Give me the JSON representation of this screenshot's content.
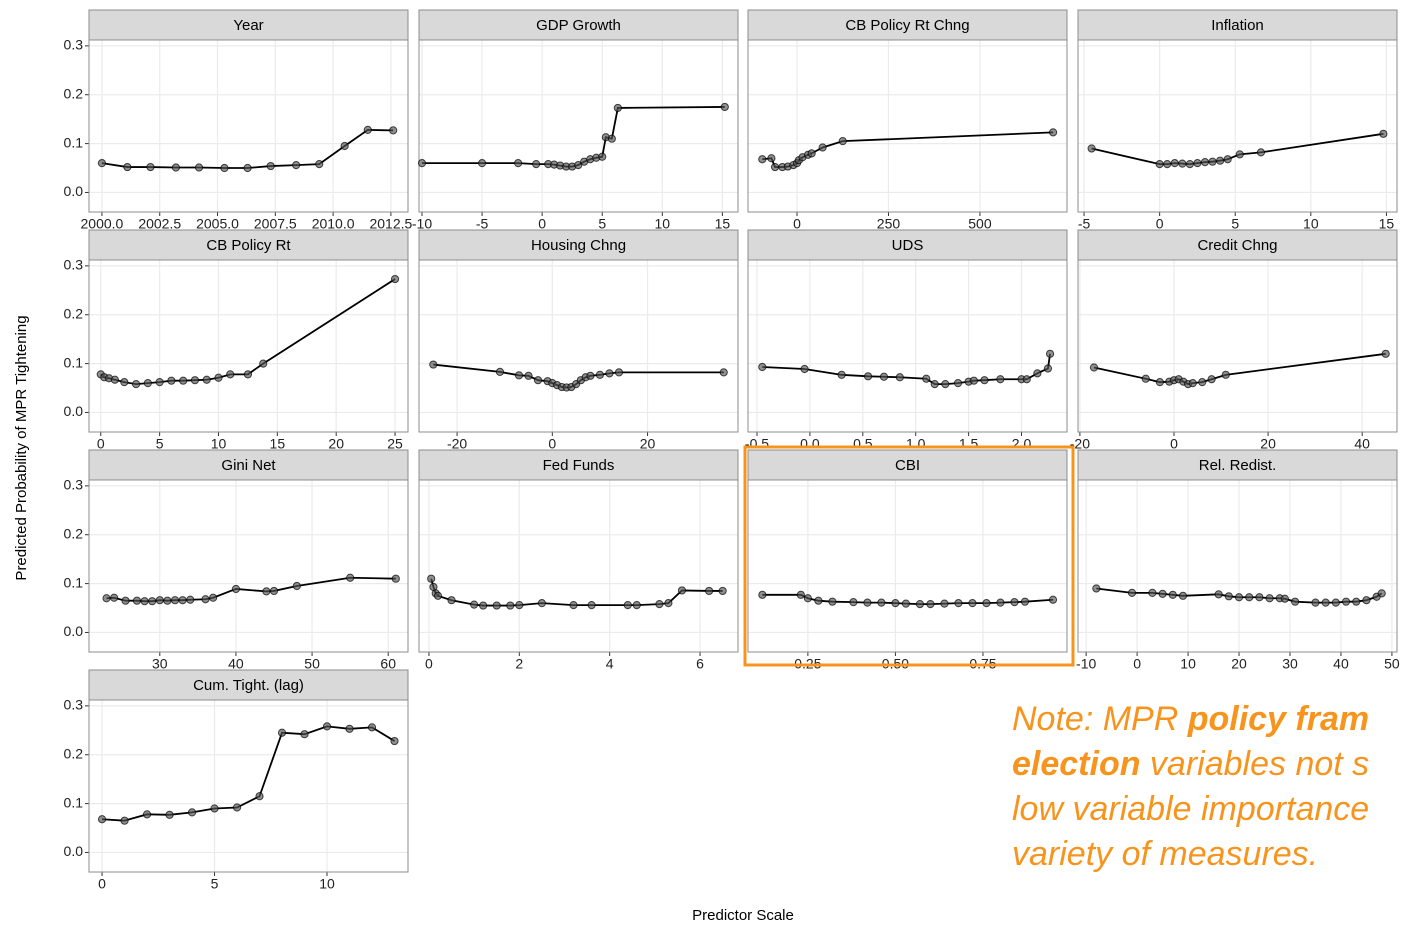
{
  "chart_data": [
    {
      "type": "line",
      "title": "Year",
      "x": [
        2000,
        2001.1,
        2002.1,
        2003.2,
        2004.2,
        2005.3,
        2006.3,
        2007.3,
        2008.4,
        2009.4,
        2010.5,
        2011.5,
        2012.6
      ],
      "values": [
        0.06,
        0.052,
        0.052,
        0.051,
        0.051,
        0.05,
        0.05,
        0.054,
        0.056,
        0.058,
        0.095,
        0.128,
        0.127
      ],
      "xlim": [
        1999.44,
        2013.24
      ],
      "xticks": [
        {
          "value": 2000,
          "label": "2000.0"
        },
        2002.5,
        {
          "value": 2005,
          "label": "2005.0"
        },
        2007.5,
        {
          "value": 2010,
          "label": "2010.0"
        },
        2012.5
      ],
      "ylim": [
        -0.04,
        0.312
      ],
      "yticks": [
        {
          "value": 0,
          "label": "0.0"
        },
        0.1,
        0.2,
        0.3
      ],
      "grid": true,
      "color": "#000000"
    },
    {
      "type": "line",
      "title": "GDP Growth",
      "x": [
        -10,
        -5,
        -2,
        -0.5,
        0.5,
        1,
        1.5,
        2,
        2.5,
        3,
        3.5,
        4,
        4.5,
        5,
        5.3,
        5.8,
        6.3,
        15.2
      ],
      "values": [
        0.06,
        0.06,
        0.06,
        0.058,
        0.058,
        0.057,
        0.055,
        0.053,
        0.053,
        0.056,
        0.063,
        0.068,
        0.071,
        0.073,
        0.113,
        0.11,
        0.173,
        0.175
      ],
      "xlim": [
        -10.25,
        16.3
      ],
      "xticks": [
        -10,
        -5,
        0,
        5,
        10,
        15
      ],
      "ylim": [
        -0.04,
        0.312
      ],
      "yticks": [
        0,
        0.1,
        0.2,
        0.3
      ],
      "grid": true,
      "color": "#000000"
    },
    {
      "type": "line",
      "title": "CB Policy Rt Chng",
      "x": [
        -95,
        -70,
        -60,
        -40,
        -25,
        -10,
        0,
        5,
        15,
        30,
        40,
        70,
        125,
        700
      ],
      "values": [
        0.068,
        0.07,
        0.052,
        0.052,
        0.053,
        0.056,
        0.06,
        0.066,
        0.072,
        0.077,
        0.08,
        0.092,
        0.105,
        0.123
      ],
      "xlim": [
        -134,
        738
      ],
      "xticks": [
        0,
        250,
        500
      ],
      "ylim": [
        -0.04,
        0.312
      ],
      "yticks": [
        0,
        0.1,
        0.2,
        0.3
      ],
      "grid": true,
      "color": "#000000"
    },
    {
      "type": "line",
      "title": "Inflation",
      "x": [
        -4.5,
        0,
        0.5,
        1,
        1.5,
        2,
        2.5,
        3,
        3.5,
        4,
        4.5,
        5.3,
        6.7,
        14.8
      ],
      "values": [
        0.09,
        0.058,
        0.058,
        0.06,
        0.059,
        0.058,
        0.06,
        0.062,
        0.063,
        0.065,
        0.068,
        0.078,
        0.082,
        0.12
      ],
      "xlim": [
        -5.4,
        15.7
      ],
      "xticks": [
        -5,
        0,
        5,
        10,
        15
      ],
      "ylim": [
        -0.04,
        0.312
      ],
      "yticks": [
        0,
        0.1,
        0.2,
        0.3
      ],
      "grid": true,
      "color": "#000000"
    },
    {
      "type": "line",
      "title": "CB Policy Rt",
      "x": [
        0,
        0.3,
        0.7,
        1.2,
        2,
        3,
        4,
        5,
        6,
        7,
        8,
        9,
        10,
        11,
        12.5,
        13.8,
        25
      ],
      "values": [
        0.078,
        0.072,
        0.07,
        0.067,
        0.062,
        0.058,
        0.06,
        0.062,
        0.065,
        0.065,
        0.066,
        0.067,
        0.071,
        0.078,
        0.078,
        0.1,
        0.273
      ],
      "xlim": [
        -1,
        26.1
      ],
      "xticks": [
        0,
        5,
        10,
        15,
        20,
        25
      ],
      "ylim": [
        -0.04,
        0.312
      ],
      "yticks": [
        {
          "value": 0,
          "label": "0.0"
        },
        0.1,
        0.2,
        0.3
      ],
      "grid": true,
      "color": "#000000"
    },
    {
      "type": "line",
      "title": "Housing Chng",
      "x": [
        -25,
        -11,
        -7,
        -5,
        -3,
        -1,
        0,
        1,
        2,
        3,
        4,
        5,
        6,
        7,
        8,
        10,
        12,
        14,
        36
      ],
      "values": [
        0.098,
        0.083,
        0.076,
        0.075,
        0.066,
        0.064,
        0.06,
        0.056,
        0.052,
        0.051,
        0.052,
        0.058,
        0.066,
        0.072,
        0.075,
        0.077,
        0.08,
        0.082,
        0.082
      ],
      "xlim": [
        -28,
        39
      ],
      "xticks": [
        -20,
        0,
        20
      ],
      "ylim": [
        -0.04,
        0.312
      ],
      "yticks": [
        0,
        0.1,
        0.2,
        0.3
      ],
      "grid": true,
      "color": "#000000"
    },
    {
      "type": "line",
      "title": "UDS",
      "x": [
        -0.45,
        -0.05,
        0.3,
        0.55,
        0.7,
        0.85,
        1.1,
        1.18,
        1.28,
        1.4,
        1.5,
        1.55,
        1.65,
        1.8,
        2.0,
        2.05,
        2.15,
        2.25,
        2.27
      ],
      "values": [
        0.093,
        0.089,
        0.077,
        0.074,
        0.073,
        0.072,
        0.069,
        0.058,
        0.058,
        0.06,
        0.063,
        0.065,
        0.066,
        0.068,
        0.068,
        0.068,
        0.08,
        0.09,
        0.12
      ],
      "xlim": [
        -0.585,
        2.43
      ],
      "xticks": [
        -0.5,
        {
          "value": 0,
          "label": "0.0"
        },
        0.5,
        {
          "value": 1,
          "label": "1.0"
        },
        1.5,
        {
          "value": 2,
          "label": "2.0"
        }
      ],
      "ylim": [
        -0.04,
        0.312
      ],
      "yticks": [
        0,
        0.1,
        0.2,
        0.3
      ],
      "grid": true,
      "color": "#000000"
    },
    {
      "type": "line",
      "title": "Credit Chng",
      "x": [
        -17,
        -6,
        -3,
        -1,
        0,
        1,
        2,
        3,
        4,
        6,
        8,
        11,
        45
      ],
      "values": [
        0.092,
        0.069,
        0.062,
        0.063,
        0.066,
        0.068,
        0.063,
        0.058,
        0.06,
        0.062,
        0.068,
        0.077,
        0.12
      ],
      "xlim": [
        -20.4,
        47.4
      ],
      "xticks": [
        -20,
        0,
        20,
        40
      ],
      "ylim": [
        -0.04,
        0.312
      ],
      "yticks": [
        0,
        0.1,
        0.2,
        0.3
      ],
      "grid": true,
      "color": "#000000"
    },
    {
      "type": "line",
      "title": "Gini Net",
      "x": [
        23,
        24,
        25.5,
        27,
        28,
        29,
        30,
        31,
        32,
        33,
        34,
        36,
        37,
        40,
        44,
        45,
        48,
        55,
        61
      ],
      "values": [
        0.07,
        0.071,
        0.065,
        0.065,
        0.064,
        0.064,
        0.066,
        0.065,
        0.066,
        0.066,
        0.067,
        0.068,
        0.071,
        0.089,
        0.084,
        0.085,
        0.095,
        0.112,
        0.11
      ],
      "xlim": [
        20.7,
        62.6
      ],
      "xticks": [
        30,
        40,
        50,
        60
      ],
      "ylim": [
        -0.04,
        0.312
      ],
      "yticks": [
        {
          "value": 0,
          "label": "0.0"
        },
        0.1,
        0.2,
        0.3
      ],
      "grid": true,
      "color": "#000000"
    },
    {
      "type": "line",
      "title": "Fed Funds",
      "x": [
        0.05,
        0.1,
        0.15,
        0.2,
        0.5,
        1,
        1.2,
        1.5,
        1.8,
        2.0,
        2.5,
        3.2,
        3.6,
        4.4,
        4.6,
        5.1,
        5.3,
        5.6,
        6.2,
        6.5
      ],
      "values": [
        0.11,
        0.093,
        0.08,
        0.075,
        0.066,
        0.057,
        0.055,
        0.055,
        0.055,
        0.056,
        0.06,
        0.056,
        0.056,
        0.056,
        0.056,
        0.058,
        0.06,
        0.086,
        0.085,
        0.085
      ],
      "xlim": [
        -0.22,
        6.84
      ],
      "xticks": [
        0,
        2,
        4,
        6
      ],
      "ylim": [
        -0.04,
        0.312
      ],
      "yticks": [
        0,
        0.1,
        0.2,
        0.3
      ],
      "grid": true,
      "color": "#000000"
    },
    {
      "type": "line",
      "title": "CBI",
      "x": [
        0.12,
        0.23,
        0.25,
        0.28,
        0.32,
        0.38,
        0.42,
        0.46,
        0.5,
        0.53,
        0.57,
        0.6,
        0.64,
        0.68,
        0.72,
        0.76,
        0.8,
        0.84,
        0.87,
        0.95
      ],
      "values": [
        0.077,
        0.077,
        0.07,
        0.065,
        0.063,
        0.062,
        0.061,
        0.061,
        0.06,
        0.059,
        0.058,
        0.058,
        0.059,
        0.06,
        0.06,
        0.06,
        0.061,
        0.062,
        0.063,
        0.067
      ],
      "xlim": [
        0.079,
        0.99
      ],
      "xticks": [
        0.25,
        {
          "value": 0.5,
          "label": "0.50"
        },
        0.75
      ],
      "ylim": [
        -0.04,
        0.312
      ],
      "yticks": [
        0,
        0.1,
        0.2,
        0.3
      ],
      "grid": true,
      "color": "#000000"
    },
    {
      "type": "line",
      "title": "Rel. Redist.",
      "x": [
        -8,
        -1,
        3,
        5,
        7,
        9,
        16,
        18,
        20,
        22,
        24,
        26,
        28,
        29,
        31,
        35,
        37,
        39,
        41,
        43,
        45,
        47,
        48
      ],
      "values": [
        0.09,
        0.081,
        0.081,
        0.079,
        0.077,
        0.075,
        0.078,
        0.074,
        0.072,
        0.072,
        0.072,
        0.07,
        0.07,
        0.069,
        0.063,
        0.061,
        0.061,
        0.061,
        0.063,
        0.063,
        0.066,
        0.073,
        0.08
      ],
      "xlim": [
        -11.6,
        51
      ],
      "xticks": [
        -10,
        0,
        10,
        20,
        30,
        40,
        50
      ],
      "ylim": [
        -0.04,
        0.312
      ],
      "yticks": [
        0,
        0.1,
        0.2,
        0.3
      ],
      "grid": true,
      "color": "#000000"
    },
    {
      "type": "line",
      "title": "Cum. Tight. (lag)",
      "x": [
        0,
        1,
        2,
        3,
        4,
        5,
        6,
        7,
        8,
        9,
        10,
        11,
        12,
        13
      ],
      "values": [
        0.068,
        0.065,
        0.078,
        0.077,
        0.082,
        0.09,
        0.092,
        0.115,
        0.245,
        0.242,
        0.258,
        0.253,
        0.256,
        0.228
      ],
      "xlim": [
        -0.58,
        13.6
      ],
      "xticks": [
        0,
        5,
        10
      ],
      "ylim": [
        -0.04,
        0.312
      ],
      "yticks": [
        {
          "value": 0,
          "label": "0.0"
        },
        0.1,
        0.2,
        0.3
      ],
      "grid": true,
      "color": "#000000"
    }
  ],
  "y_label": "Predicted Probability of MPR Tightening",
  "x_label": "Predictor Scale",
  "note": {
    "color": "#f7941d",
    "lines": [
      [
        {
          "text": "Note: MPR ",
          "bold": false
        },
        {
          "text": "policy fram",
          "bold": true
        }
      ],
      [
        {
          "text": "election",
          "bold": true
        },
        {
          "text": " variables not s",
          "bold": false
        }
      ],
      [
        {
          "text": "low variable importance",
          "bold": false
        }
      ],
      [
        {
          "text": "variety of measures.",
          "bold": false
        }
      ]
    ]
  }
}
